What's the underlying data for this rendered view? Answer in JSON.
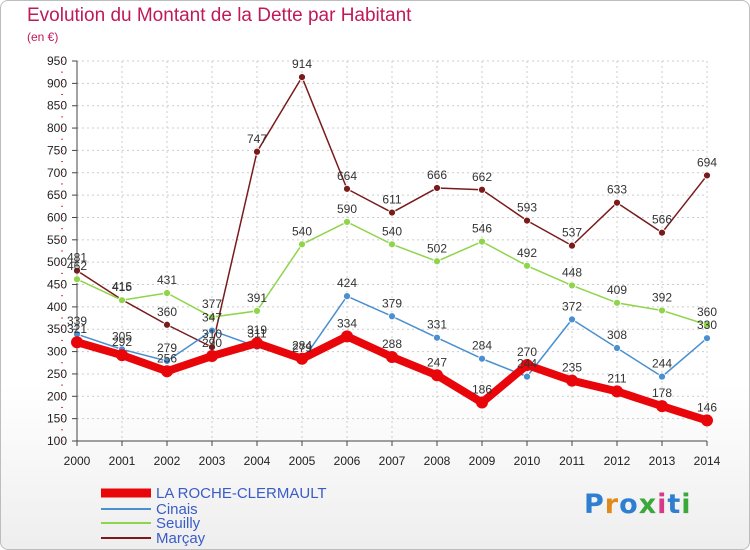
{
  "title": "Evolution du Montant de la Dette par Habitant",
  "subtitle": "(en €)",
  "logo": {
    "text": "Proxiti",
    "colors": [
      "#2f7fd0",
      "#e08a1c",
      "#2f7fd0",
      "#3aa83a",
      "#d83a8a",
      "#2f7fd0",
      "#3aa83a"
    ]
  },
  "colors": {
    "title": "#c0195a",
    "grid": "#cccccc"
  },
  "chart_data": {
    "type": "line",
    "x": [
      "2000",
      "2001",
      "2002",
      "2003",
      "2004",
      "2005",
      "2006",
      "2007",
      "2008",
      "2009",
      "2010",
      "2011",
      "2012",
      "2013",
      "2014"
    ],
    "ylim": [
      100,
      950
    ],
    "yticks": [
      100,
      150,
      200,
      250,
      300,
      350,
      400,
      450,
      500,
      550,
      600,
      650,
      700,
      750,
      800,
      850,
      900,
      950
    ],
    "grid": true,
    "legend_position": "bottom-left",
    "series": [
      {
        "name": "LA ROCHE-CLERMAULT",
        "color": "#e8060a",
        "width": 8,
        "marker_r": 6,
        "values": [
          321,
          292,
          256,
          290,
          319,
          284,
          334,
          288,
          247,
          186,
          270,
          235,
          211,
          178,
          146
        ],
        "labels": [
          "321",
          "292",
          "256",
          "290",
          "319",
          "284",
          "334",
          "288",
          "247",
          "186",
          "270",
          "235",
          "211",
          "178",
          "146"
        ]
      },
      {
        "name": "Cinais",
        "color": "#4a8fd0",
        "width": 1.5,
        "marker_r": 3.5,
        "values": [
          339,
          305,
          279,
          347,
          311,
          279,
          424,
          379,
          331,
          284,
          244,
          372,
          308,
          244,
          330
        ],
        "labels": [
          "339",
          "305",
          "279",
          "347",
          "311",
          "279",
          "424",
          "379",
          "331",
          "284",
          "244",
          "372",
          "308",
          "244",
          "330"
        ]
      },
      {
        "name": "Seuilly",
        "color": "#8fd44a",
        "width": 1.5,
        "marker_r": 3.5,
        "values": [
          462,
          415,
          431,
          377,
          391,
          540,
          590,
          540,
          502,
          546,
          492,
          448,
          409,
          392,
          360
        ],
        "labels": [
          "462",
          "415",
          "431",
          "377",
          "391",
          "540",
          "590",
          "540",
          "502",
          "546",
          "492",
          "448",
          "409",
          "392",
          "360"
        ]
      },
      {
        "name": "Marçay",
        "color": "#7a1a1a",
        "width": 1.5,
        "marker_r": 3.5,
        "values": [
          481,
          416,
          360,
          310,
          747,
          914,
          664,
          611,
          666,
          662,
          593,
          537,
          633,
          566,
          694
        ],
        "labels": [
          "481",
          "416",
          "360",
          "310",
          "747",
          "914",
          "664",
          "611",
          "666",
          "662",
          "593",
          "537",
          "633",
          "566",
          "694"
        ]
      }
    ]
  }
}
